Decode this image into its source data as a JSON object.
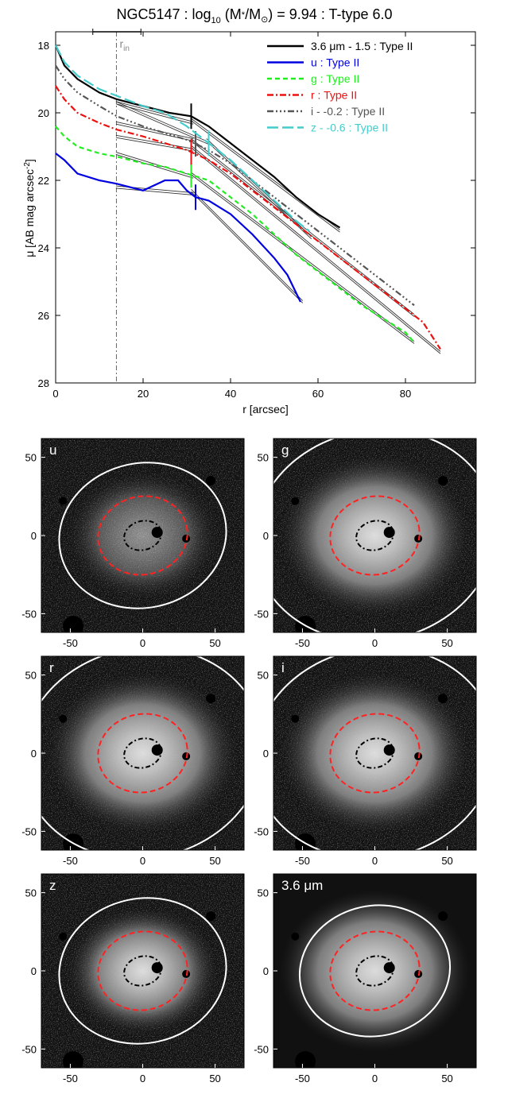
{
  "chart_data": [
    {
      "type": "line",
      "title_parts": [
        "NGC5147 : log",
        "10",
        " (M",
        "*",
        "/M",
        "⊙",
        ") = 9.94 : T-type 6.0"
      ],
      "xlabel": "r [arcsec]",
      "ylabel_parts": [
        "μ [AB mag arcsec",
        "-2",
        "]"
      ],
      "xlim": [
        0,
        96
      ],
      "ylim": [
        28,
        17.6
      ],
      "y_inverted": true,
      "xticks": [
        0,
        20,
        40,
        60,
        80
      ],
      "yticks": [
        18,
        20,
        22,
        24,
        26,
        28
      ],
      "r_in": 13.9,
      "r_in_label_main": "r",
      "r_in_label_sub": "in",
      "r_in_errorbar": [
        8.5,
        19.5
      ],
      "legend_position": "top-right",
      "series": [
        {
          "name": "3.6 μm - 1.5 : Type II",
          "color": "#000000",
          "dash": "solid",
          "x": [
            0,
            2,
            5,
            10,
            14,
            20,
            26,
            31,
            35,
            40,
            45,
            50,
            55,
            60,
            65
          ],
          "y": [
            18.0,
            18.6,
            19.0,
            19.4,
            19.6,
            19.8,
            20.0,
            20.1,
            20.4,
            20.9,
            21.4,
            21.9,
            22.5,
            23.0,
            23.4
          ],
          "break_r": 31,
          "fits": [
            [
              13.8,
              19.7,
              31.5,
              20.3
            ],
            [
              31,
              20.2,
              65,
              23.5
            ]
          ]
        },
        {
          "name": "u : Type II",
          "color": "#0000e0",
          "dash": "solid",
          "x": [
            0,
            2,
            5,
            10,
            14,
            20,
            25,
            28,
            30,
            32,
            35,
            40,
            45,
            50,
            53,
            56
          ],
          "y": [
            21.2,
            21.4,
            21.8,
            22.0,
            22.1,
            22.3,
            22.0,
            22.0,
            22.3,
            22.5,
            22.6,
            23.0,
            23.6,
            24.3,
            24.8,
            25.6
          ],
          "break_r": 32,
          "fits": [
            [
              13.8,
              22.2,
              31.5,
              22.4
            ],
            [
              31,
              22.3,
              56.5,
              25.6
            ]
          ]
        },
        {
          "name": "g : Type II",
          "color": "#22ee22",
          "dash": "6,4",
          "x": [
            0,
            2,
            5,
            10,
            14,
            20,
            25,
            30,
            35,
            40,
            45,
            50,
            55,
            60,
            65,
            70,
            75,
            80,
            82
          ],
          "y": [
            20.4,
            20.7,
            21.0,
            21.2,
            21.3,
            21.5,
            21.6,
            21.8,
            22.0,
            22.5,
            23.0,
            23.6,
            24.2,
            24.7,
            25.2,
            25.7,
            26.1,
            26.5,
            26.8
          ],
          "break_r": 31,
          "fits": [
            [
              13.8,
              21.2,
              31.5,
              21.9
            ],
            [
              31,
              21.8,
              82,
              26.8
            ]
          ]
        },
        {
          "name": "r : Type II",
          "color": "#ee1111",
          "dash": "8,3,2,3",
          "x": [
            0,
            2,
            5,
            10,
            14,
            20,
            25,
            30,
            35,
            40,
            45,
            50,
            55,
            60,
            65,
            70,
            75,
            80,
            84,
            88
          ],
          "y": [
            19.2,
            19.6,
            20.0,
            20.3,
            20.5,
            20.7,
            20.9,
            21.1,
            21.4,
            21.8,
            22.3,
            22.8,
            23.3,
            23.8,
            24.3,
            24.8,
            25.3,
            25.8,
            26.2,
            27.0
          ],
          "break_r": 31,
          "fits": [
            [
              13.8,
              20.7,
              31.5,
              21.1
            ],
            [
              31,
              21.0,
              88,
              27.1
            ]
          ]
        },
        {
          "name": "i - -0.2 : Type II",
          "color": "#555555",
          "dash": "8,3,2,3,2,3,2,3",
          "x": [
            0,
            2,
            5,
            10,
            14,
            20,
            25,
            30,
            35,
            40,
            45,
            50,
            55,
            60,
            65,
            70,
            75,
            80,
            82
          ],
          "y": [
            18.6,
            19.0,
            19.4,
            19.8,
            20.1,
            20.4,
            20.6,
            20.8,
            21.1,
            21.5,
            22.0,
            22.5,
            23.0,
            23.5,
            24.0,
            24.5,
            25.0,
            25.5,
            25.7
          ],
          "break_r": 32,
          "fits": [
            [
              13.8,
              20.3,
              31.5,
              20.8
            ],
            [
              31,
              20.8,
              82,
              26.0
            ]
          ]
        },
        {
          "name": "z - -0.6 : Type II",
          "color": "#44cccc",
          "dash": "14,5",
          "x": [
            0,
            2,
            5,
            10,
            14,
            20,
            25,
            30,
            35,
            40,
            45,
            50,
            55,
            58
          ],
          "y": [
            18.0,
            18.5,
            18.9,
            19.3,
            19.5,
            19.8,
            20.0,
            20.4,
            20.9,
            21.4,
            22.0,
            22.6,
            23.2,
            23.5
          ],
          "break_r": 35,
          "fits": [
            [
              13.8,
              19.7,
              35,
              20.9
            ],
            [
              34.5,
              20.8,
              58.5,
              23.7
            ]
          ]
        }
      ]
    },
    {
      "type": "heatmap",
      "images": [
        {
          "label": "u",
          "outer_ellipse": true,
          "outer_scale": 1.0
        },
        {
          "label": "g",
          "outer_ellipse": true,
          "outer_scale": 1.45
        },
        {
          "label": "r",
          "outer_ellipse": true,
          "outer_scale": 1.45
        },
        {
          "label": "i",
          "outer_ellipse": true,
          "outer_scale": 1.45
        },
        {
          "label": "z",
          "outer_ellipse": true,
          "outer_scale": 1.0
        },
        {
          "label": "3.6 μm",
          "outer_ellipse": true,
          "outer_scale": 0.9
        }
      ],
      "xlim": [
        -70,
        70
      ],
      "ylim": [
        -62,
        62
      ],
      "xticks": [
        -50,
        0,
        50
      ],
      "yticks": [
        -50,
        0,
        50
      ],
      "ellipse_inner_semi_axes": [
        13,
        10
      ],
      "ellipse_break_semi_axes": [
        31,
        27
      ],
      "ellipse_outer_semi_axes": [
        58,
        50
      ],
      "ellipse_colors": {
        "inner": "#000000",
        "break": "#ff2222",
        "outer": "#ffffff"
      }
    }
  ]
}
